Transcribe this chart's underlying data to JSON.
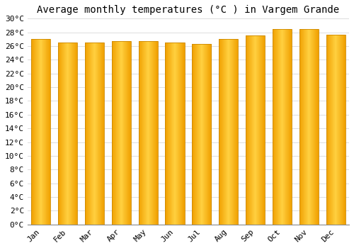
{
  "title": "Average monthly temperatures (°C ) in Vargem Grande",
  "months": [
    "Jan",
    "Feb",
    "Mar",
    "Apr",
    "May",
    "Jun",
    "Jul",
    "Aug",
    "Sep",
    "Oct",
    "Nov",
    "Dec"
  ],
  "temperatures": [
    27.0,
    26.5,
    26.5,
    26.7,
    26.7,
    26.5,
    26.3,
    27.0,
    27.5,
    28.5,
    28.5,
    27.7
  ],
  "ylim": [
    0,
    30
  ],
  "yticks": [
    0,
    2,
    4,
    6,
    8,
    10,
    12,
    14,
    16,
    18,
    20,
    22,
    24,
    26,
    28,
    30
  ],
  "bar_color_center": "#FFD040",
  "bar_color_edge": "#F0A000",
  "background_color": "#FFFFFF",
  "grid_color": "#DDDDDD",
  "title_fontsize": 10,
  "tick_fontsize": 8
}
